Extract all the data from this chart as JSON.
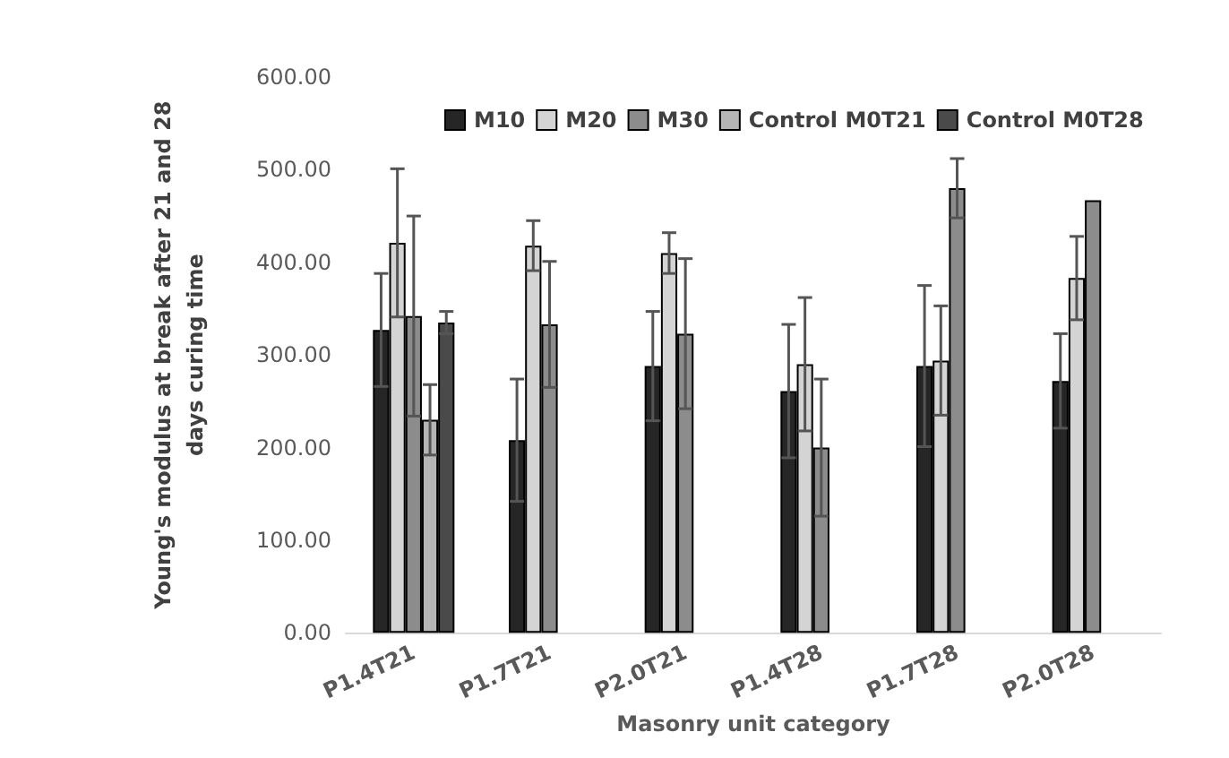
{
  "chart_data": {
    "type": "bar",
    "xlabel": "Masonry unit category",
    "ylabel": "Young's modulus at break after 21 and 28\ndays curing time",
    "categories": [
      "P1.4T21",
      "P1.7T21",
      "P2.0T21",
      "P1.4T28",
      "P1.7T28",
      "P2.0T28"
    ],
    "series": [
      {
        "name": "M10",
        "color": "#262626",
        "values": [
          327,
          208,
          288,
          261,
          288,
          272
        ],
        "errors": [
          61,
          66,
          59,
          72,
          87,
          51
        ]
      },
      {
        "name": "M20",
        "color": "#d4d4d4",
        "values": [
          421,
          418,
          410,
          290,
          294,
          383
        ],
        "errors": [
          80,
          27,
          22,
          72,
          59,
          45
        ]
      },
      {
        "name": "M30",
        "color": "#8c8c8c",
        "values": [
          342,
          333,
          323,
          200,
          480,
          467
        ],
        "errors": [
          108,
          68,
          81,
          74,
          32,
          null
        ]
      },
      {
        "name": "Control M0T21",
        "color": "#b5b5b5",
        "values": [
          230,
          null,
          null,
          null,
          null,
          null
        ],
        "errors": [
          38,
          null,
          null,
          null,
          null,
          null
        ]
      },
      {
        "name": "Control M0T28",
        "color": "#4a4a4a",
        "values": [
          335,
          null,
          null,
          null,
          null,
          null
        ],
        "errors": [
          12,
          null,
          null,
          null,
          null,
          null
        ]
      }
    ],
    "ylim": [
      0,
      600
    ],
    "yticks": [
      {
        "value": 0,
        "label": "0.00"
      },
      {
        "value": 100,
        "label": "100.00"
      },
      {
        "value": 200,
        "label": "200.00"
      },
      {
        "value": 300,
        "label": "300.00"
      },
      {
        "value": 400,
        "label": "400.00"
      },
      {
        "value": 500,
        "label": "500.00"
      },
      {
        "value": 600,
        "label": "600.00"
      }
    ],
    "grid": false,
    "legend": "top"
  }
}
